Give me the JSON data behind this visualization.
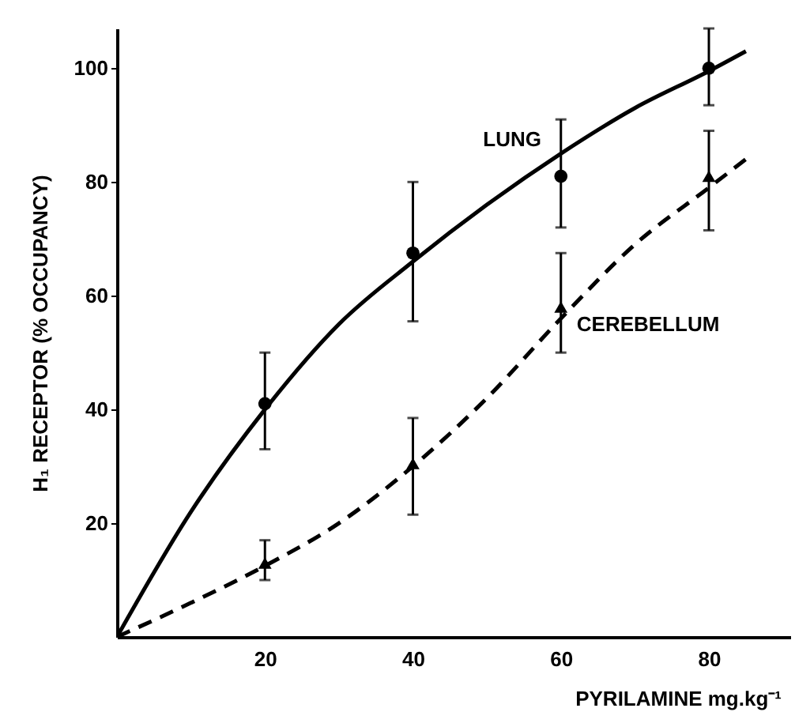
{
  "chart_data": {
    "type": "line",
    "xlabel": "PYRILAMINE mg.kg⁻¹",
    "ylabel": "H₁ RECEPTOR (% OCCUPANCY)",
    "xlim": [
      0,
      91
    ],
    "ylim": [
      0,
      107
    ],
    "xticks": [
      20,
      40,
      60,
      80
    ],
    "yticks": [
      20,
      40,
      60,
      80,
      100
    ],
    "series": [
      {
        "name": "LUNG",
        "color": "#000000",
        "line_style": "solid",
        "marker": "none",
        "x": [
          0,
          10,
          20,
          30,
          40,
          50,
          60,
          70,
          80,
          85
        ],
        "values": [
          0,
          22,
          40,
          55,
          66,
          76,
          85,
          93,
          99.5,
          103
        ]
      },
      {
        "name": "CEREBELLUM",
        "color": "#000000",
        "line_style": "dashed",
        "marker": "none",
        "x": [
          0,
          10,
          20,
          30,
          40,
          50,
          60,
          70,
          80,
          85
        ],
        "values": [
          0,
          6,
          12.5,
          20,
          30,
          42,
          56,
          69,
          79,
          84
        ]
      },
      {
        "type": "scatter",
        "color": "#000000",
        "marker": "circle",
        "x": [
          20,
          40,
          60,
          80
        ],
        "values": [
          41,
          67.5,
          81,
          100
        ],
        "errors": [
          [
            33,
            50
          ],
          [
            55.5,
            80
          ],
          [
            72,
            91
          ],
          [
            93.5,
            107
          ]
        ]
      },
      {
        "type": "scatter",
        "color": "#000000",
        "marker": "triangle",
        "x": [
          20,
          40,
          60,
          80
        ],
        "values": [
          13,
          30.5,
          58,
          81
        ],
        "errors": [
          [
            10,
            17
          ],
          [
            21.5,
            38.5
          ],
          [
            50,
            67.5
          ],
          [
            71.5,
            89
          ]
        ]
      }
    ]
  }
}
